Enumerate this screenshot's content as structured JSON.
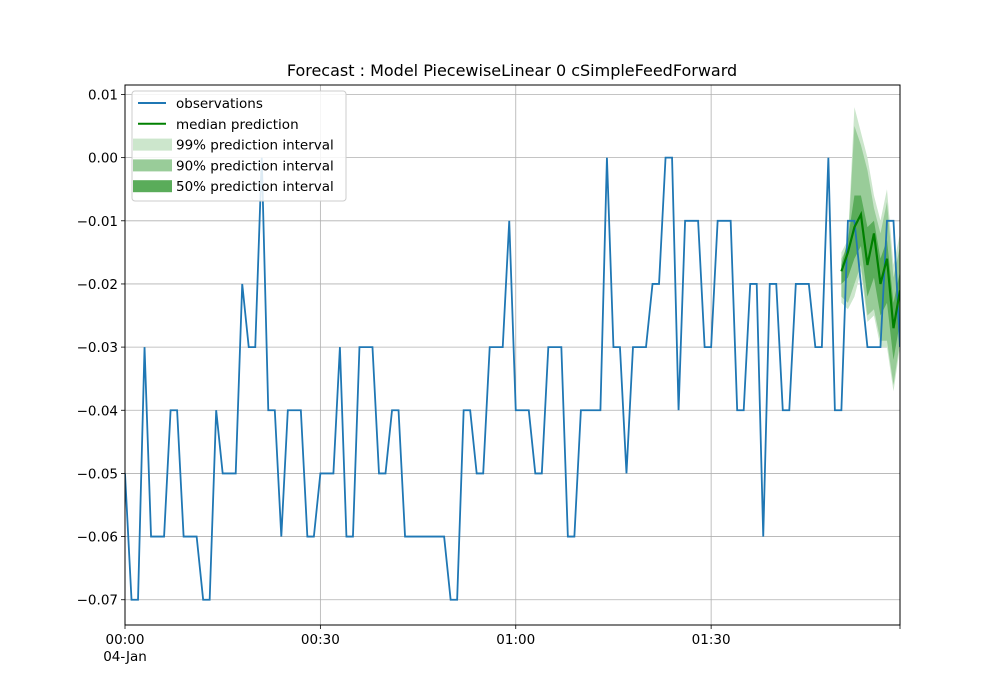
{
  "chart_data": {
    "type": "line",
    "title": "Forecast : Model PiecewiseLinear 0 cSimpleFeedForward",
    "xlabel": "",
    "ylabel": "",
    "ylim": [
      -0.074,
      0.0115
    ],
    "xlim_minutes": [
      0,
      119
    ],
    "x_ticks": [
      {
        "minute": 0,
        "label": "00:00",
        "sublabel": "04-Jan"
      },
      {
        "minute": 30,
        "label": "00:30",
        "sublabel": ""
      },
      {
        "minute": 60,
        "label": "01:00",
        "sublabel": ""
      },
      {
        "minute": 90,
        "label": "01:30",
        "sublabel": ""
      }
    ],
    "y_ticks": [
      {
        "value": 0.01,
        "label": "0.01"
      },
      {
        "value": 0.0,
        "label": "0.00"
      },
      {
        "value": -0.01,
        "label": "−0.01"
      },
      {
        "value": -0.02,
        "label": "−0.02"
      },
      {
        "value": -0.03,
        "label": "−0.03"
      },
      {
        "value": -0.04,
        "label": "−0.04"
      },
      {
        "value": -0.05,
        "label": "−0.05"
      },
      {
        "value": -0.06,
        "label": "−0.06"
      },
      {
        "value": -0.07,
        "label": "−0.07"
      }
    ],
    "grid": true,
    "legend_position": "top-left",
    "legend": [
      {
        "label": "observations",
        "kind": "line",
        "color": "#1f77b4"
      },
      {
        "label": "median prediction",
        "kind": "line",
        "color": "#008000"
      },
      {
        "label": "99% prediction interval",
        "kind": "patch",
        "color": "#cce6cc"
      },
      {
        "label": "90% prediction interval",
        "kind": "patch",
        "color": "#99cc99"
      },
      {
        "label": "50% prediction interval",
        "kind": "patch",
        "color": "#5aac5a"
      }
    ],
    "observations": {
      "name": "observations",
      "color": "#1f77b4",
      "x_minutes": [
        0,
        1,
        2,
        3,
        4,
        5,
        6,
        7,
        8,
        9,
        10,
        11,
        12,
        13,
        14,
        15,
        16,
        17,
        18,
        19,
        20,
        21,
        22,
        23,
        24,
        25,
        26,
        27,
        28,
        29,
        30,
        31,
        32,
        33,
        34,
        35,
        36,
        37,
        38,
        39,
        40,
        41,
        42,
        43,
        44,
        45,
        46,
        47,
        48,
        49,
        50,
        51,
        52,
        53,
        54,
        55,
        56,
        57,
        58,
        59,
        60,
        61,
        62,
        63,
        64,
        65,
        66,
        67,
        68,
        69,
        70,
        71,
        72,
        73,
        74,
        75,
        76,
        77,
        78,
        79,
        80,
        81,
        82,
        83,
        84,
        85,
        86,
        87,
        88,
        89,
        90,
        91,
        92,
        93,
        94,
        95,
        96,
        97,
        98,
        99,
        100,
        101,
        102,
        103,
        104,
        105,
        106,
        107,
        108,
        109,
        110,
        111,
        112,
        113,
        114,
        115,
        116,
        117,
        118,
        119
      ],
      "values": [
        -0.05,
        -0.07,
        -0.07,
        -0.03,
        -0.06,
        -0.06,
        -0.06,
        -0.04,
        -0.04,
        -0.06,
        -0.06,
        -0.06,
        -0.07,
        -0.07,
        -0.04,
        -0.05,
        -0.05,
        -0.05,
        -0.02,
        -0.03,
        -0.03,
        0.0,
        -0.04,
        -0.04,
        -0.06,
        -0.04,
        -0.04,
        -0.04,
        -0.06,
        -0.06,
        -0.05,
        -0.05,
        -0.05,
        -0.03,
        -0.06,
        -0.06,
        -0.03,
        -0.03,
        -0.03,
        -0.05,
        -0.05,
        -0.04,
        -0.04,
        -0.06,
        -0.06,
        -0.06,
        -0.06,
        -0.06,
        -0.06,
        -0.06,
        -0.07,
        -0.07,
        -0.04,
        -0.04,
        -0.05,
        -0.05,
        -0.03,
        -0.03,
        -0.03,
        -0.01,
        -0.04,
        -0.04,
        -0.04,
        -0.05,
        -0.05,
        -0.03,
        -0.03,
        -0.03,
        -0.06,
        -0.06,
        -0.04,
        -0.04,
        -0.04,
        -0.04,
        0.0,
        -0.03,
        -0.03,
        -0.05,
        -0.03,
        -0.03,
        -0.03,
        -0.02,
        -0.02,
        0.0,
        0.0,
        -0.04,
        -0.01,
        -0.01,
        -0.01,
        -0.03,
        -0.03,
        -0.01,
        -0.01,
        -0.01,
        -0.04,
        -0.04,
        -0.02,
        -0.02,
        -0.06,
        -0.02,
        -0.02,
        -0.04,
        -0.04,
        -0.02,
        -0.02,
        -0.02,
        -0.03,
        -0.03,
        0.0,
        -0.04,
        -0.04,
        -0.01,
        -0.01,
        -0.02,
        -0.03,
        -0.03,
        -0.03,
        -0.01,
        -0.01,
        -0.03
      ]
    },
    "forecast": {
      "x_minutes": [
        110,
        111,
        112,
        113,
        114,
        115,
        116,
        117,
        118,
        119
      ],
      "median": [
        -0.018,
        -0.015,
        -0.011,
        -0.009,
        -0.017,
        -0.012,
        -0.02,
        -0.016,
        -0.027,
        -0.021
      ],
      "p99_low": [
        -0.023,
        -0.024,
        -0.022,
        -0.018,
        -0.026,
        -0.025,
        -0.03,
        -0.03,
        -0.037,
        -0.03
      ],
      "p99_high": [
        -0.015,
        -0.013,
        0.008,
        0.004,
        0.0,
        -0.006,
        -0.01,
        -0.005,
        -0.017,
        -0.012
      ],
      "p90_low": [
        -0.022,
        -0.023,
        -0.02,
        -0.017,
        -0.025,
        -0.024,
        -0.029,
        -0.029,
        -0.036,
        -0.029
      ],
      "p90_high": [
        -0.016,
        -0.014,
        0.005,
        0.002,
        -0.002,
        -0.008,
        -0.012,
        -0.007,
        -0.019,
        -0.014
      ],
      "p50_low": [
        -0.02,
        -0.019,
        -0.016,
        -0.014,
        -0.022,
        -0.019,
        -0.025,
        -0.023,
        -0.032,
        -0.026
      ],
      "p50_high": [
        -0.017,
        -0.013,
        -0.006,
        -0.006,
        -0.011,
        -0.01,
        -0.016,
        -0.013,
        -0.023,
        -0.018
      ]
    }
  }
}
